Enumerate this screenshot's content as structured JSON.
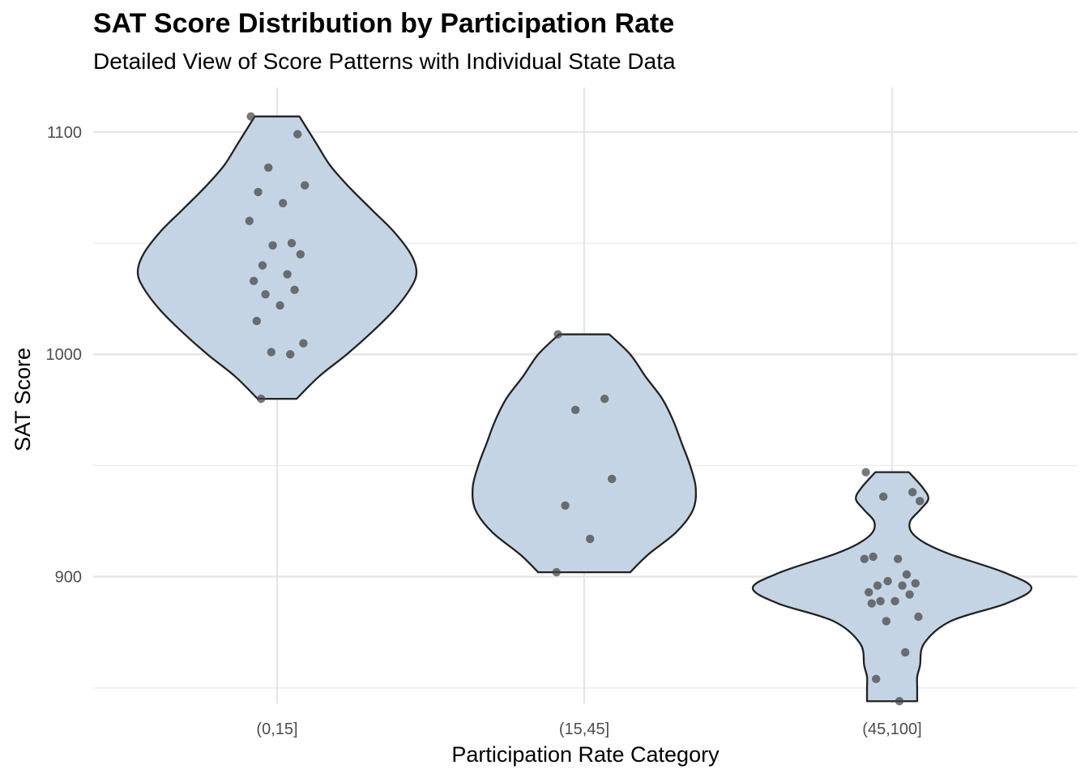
{
  "chart_data": {
    "type": "violin",
    "title": "SAT Score Distribution by Participation Rate",
    "subtitle": "Detailed View of Score Patterns with Individual State Data",
    "xlabel": "Participation Rate Category",
    "ylabel": "SAT Score",
    "categories": [
      "(0,15]",
      "(15,45]",
      "(45,100]"
    ],
    "ylim": [
      843,
      1120
    ],
    "yticks": [
      900,
      1000,
      1100
    ],
    "grid": true,
    "legend": "none",
    "colors": {
      "violin_fill": "#c5d4e5",
      "violin_stroke": "#222222",
      "point": "#444444",
      "grid": "#e6e6e6",
      "axis_text": "#4d4d4d"
    },
    "groups": [
      {
        "category": "(0,15]",
        "points": [
          1107,
          1099,
          1084,
          1076,
          1073,
          1068,
          1060,
          1050,
          1049,
          1045,
          1040,
          1036,
          1033,
          1029,
          1027,
          1022,
          1015,
          1005,
          1001,
          1000,
          980
        ],
        "violin_profile": [
          [
            980,
            0.14
          ],
          [
            990,
            0.3
          ],
          [
            1000,
            0.5
          ],
          [
            1010,
            0.68
          ],
          [
            1020,
            0.84
          ],
          [
            1030,
            0.96
          ],
          [
            1037,
            1.0
          ],
          [
            1045,
            0.96
          ],
          [
            1055,
            0.84
          ],
          [
            1065,
            0.68
          ],
          [
            1075,
            0.52
          ],
          [
            1085,
            0.38
          ],
          [
            1095,
            0.28
          ],
          [
            1107,
            0.16
          ]
        ]
      },
      {
        "category": "(15,45]",
        "points": [
          1009,
          980,
          975,
          944,
          932,
          917,
          902
        ],
        "violin_profile": [
          [
            902,
            0.33
          ],
          [
            910,
            0.46
          ],
          [
            920,
            0.66
          ],
          [
            930,
            0.78
          ],
          [
            940,
            0.8
          ],
          [
            950,
            0.76
          ],
          [
            960,
            0.7
          ],
          [
            970,
            0.64
          ],
          [
            980,
            0.56
          ],
          [
            990,
            0.44
          ],
          [
            1000,
            0.33
          ],
          [
            1009,
            0.18
          ]
        ]
      },
      {
        "category": "(45,100]",
        "points": [
          947,
          938,
          936,
          934,
          909,
          908,
          908,
          901,
          898,
          897,
          896,
          896,
          893,
          892,
          889,
          889,
          888,
          882,
          880,
          866,
          854,
          844
        ],
        "violin_profile": [
          [
            844,
            0.18
          ],
          [
            850,
            0.18
          ],
          [
            855,
            0.18
          ],
          [
            860,
            0.2
          ],
          [
            870,
            0.23
          ],
          [
            880,
            0.42
          ],
          [
            888,
            0.82
          ],
          [
            895,
            1.0
          ],
          [
            902,
            0.8
          ],
          [
            910,
            0.42
          ],
          [
            915,
            0.24
          ],
          [
            920,
            0.14
          ],
          [
            925,
            0.13
          ],
          [
            930,
            0.2
          ],
          [
            935,
            0.26
          ],
          [
            940,
            0.22
          ],
          [
            947,
            0.12
          ]
        ]
      }
    ]
  }
}
